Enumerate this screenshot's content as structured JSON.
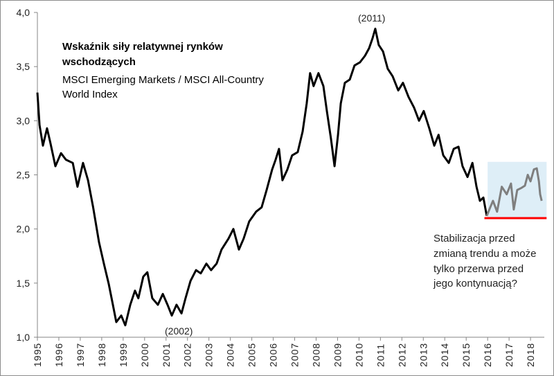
{
  "chart_data": {
    "type": "line",
    "title": [
      "Wskaźnik siły relatywnej rynków",
      "wschodzących"
    ],
    "subtitle": [
      "MSCI Emerging Markets / MSCI All-Country",
      "World Index"
    ],
    "xlabel": "",
    "ylabel": "",
    "xlim": [
      1995,
      2018.6
    ],
    "ylim": [
      1.0,
      4.0
    ],
    "grid": false,
    "y_ticks": [
      "1,0",
      "1,5",
      "2,0",
      "2,5",
      "3,0",
      "3,5",
      "4,0"
    ],
    "y_tick_values": [
      1.0,
      1.5,
      2.0,
      2.5,
      3.0,
      3.5,
      4.0
    ],
    "x_ticks": [
      "1995",
      "1996",
      "1997",
      "1998",
      "1999",
      "2000",
      "2001",
      "2002",
      "2003",
      "2004",
      "2005",
      "2006",
      "2007",
      "2008",
      "2009",
      "2010",
      "2011",
      "2012",
      "2013",
      "2014",
      "2015",
      "2016",
      "2017",
      "2018"
    ],
    "series": [
      {
        "name": "Relative strength",
        "color": "#000000",
        "x": [
          1995.0,
          1995.1,
          1995.26,
          1995.45,
          1995.6,
          1995.84,
          1996.1,
          1996.33,
          1996.65,
          1996.87,
          1997.13,
          1997.36,
          1997.6,
          1997.87,
          1998.1,
          1998.33,
          1998.52,
          1998.68,
          1998.91,
          1999.1,
          1999.33,
          1999.55,
          1999.71,
          1999.94,
          2000.13,
          2000.36,
          2000.62,
          2000.85,
          2001.07,
          2001.27,
          2001.49,
          2001.72,
          2001.91,
          2002.14,
          2002.4,
          2002.62,
          2002.88,
          2003.1,
          2003.36,
          2003.59,
          2003.91,
          2004.14,
          2004.4,
          2004.62,
          2004.88,
          2005.2,
          2005.46,
          2005.69,
          2005.95,
          2006.11,
          2006.27,
          2006.43,
          2006.66,
          2006.88,
          2007.14,
          2007.37,
          2007.56,
          2007.72,
          2007.88,
          2008.11,
          2008.34,
          2008.5,
          2008.69,
          2008.86,
          2009.02,
          2009.15,
          2009.34,
          2009.57,
          2009.79,
          2010.05,
          2010.28,
          2010.47,
          2010.63,
          2010.76,
          2010.92,
          2011.12,
          2011.34,
          2011.57,
          2011.83,
          2012.05,
          2012.31,
          2012.57,
          2012.8,
          2013.02,
          2013.28,
          2013.51,
          2013.71,
          2013.93,
          2014.19,
          2014.42,
          2014.64,
          2014.83,
          2015.06,
          2015.29,
          2015.48,
          2015.64,
          2015.8,
          2015.96
        ],
        "y": [
          3.26,
          2.96,
          2.77,
          2.93,
          2.8,
          2.58,
          2.7,
          2.64,
          2.61,
          2.39,
          2.61,
          2.45,
          2.2,
          1.88,
          1.68,
          1.49,
          1.3,
          1.14,
          1.2,
          1.11,
          1.3,
          1.43,
          1.36,
          1.56,
          1.6,
          1.36,
          1.3,
          1.4,
          1.3,
          1.2,
          1.3,
          1.22,
          1.36,
          1.52,
          1.62,
          1.59,
          1.68,
          1.62,
          1.68,
          1.81,
          1.91,
          2.0,
          1.81,
          1.91,
          2.07,
          2.16,
          2.2,
          2.36,
          2.55,
          2.64,
          2.74,
          2.45,
          2.55,
          2.68,
          2.71,
          2.9,
          3.16,
          3.44,
          3.32,
          3.44,
          3.32,
          3.09,
          2.84,
          2.58,
          2.87,
          3.16,
          3.35,
          3.38,
          3.51,
          3.54,
          3.6,
          3.67,
          3.76,
          3.85,
          3.7,
          3.64,
          3.48,
          3.41,
          3.28,
          3.35,
          3.22,
          3.12,
          3.0,
          3.09,
          2.93,
          2.77,
          2.87,
          2.68,
          2.61,
          2.74,
          2.76,
          2.58,
          2.48,
          2.61,
          2.39,
          2.26,
          2.29,
          2.12
        ]
      },
      {
        "name": "Recent period (highlighted)",
        "color": "#7f7f7f",
        "x": [
          2015.96,
          2016.12,
          2016.25,
          2016.44,
          2016.66,
          2016.89,
          2017.09,
          2017.22,
          2017.38,
          2017.58,
          2017.74,
          2017.87,
          2018.0,
          2018.16,
          2018.29,
          2018.39,
          2018.45,
          2018.52
        ],
        "y": [
          2.12,
          2.2,
          2.26,
          2.16,
          2.39,
          2.32,
          2.42,
          2.18,
          2.36,
          2.38,
          2.4,
          2.5,
          2.44,
          2.55,
          2.56,
          2.44,
          2.32,
          2.26
        ]
      }
    ],
    "highlight_box": {
      "x": [
        2016.0,
        2018.75
      ],
      "y": [
        2.1,
        2.62
      ],
      "color": "#deeef7"
    },
    "support_line": {
      "value": 2.1,
      "x": [
        2015.85,
        2018.75
      ],
      "color": "#ff0000"
    },
    "annotations": [
      {
        "text": "(2011)",
        "x": 2010.8,
        "y": 3.9
      },
      {
        "text": "(2002)",
        "x": 2001.7,
        "y": 1.05
      },
      {
        "text_lines": [
          "Stabilizacja przed",
          "zmianą trendu a może",
          "tylko przerwa przed",
          "jego kontynuacją?"
        ]
      }
    ]
  }
}
